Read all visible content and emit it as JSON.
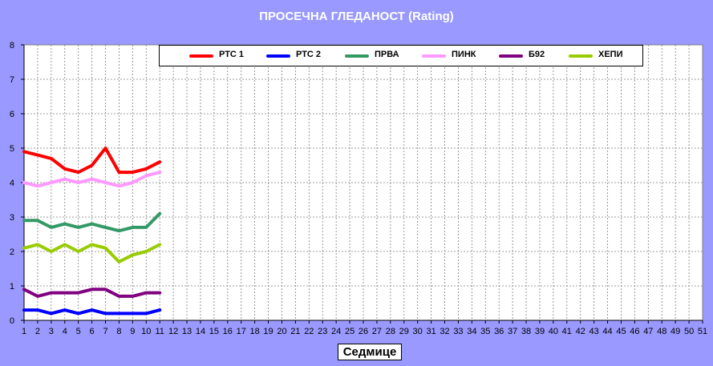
{
  "chart_data": {
    "type": "line",
    "title": "ПРОСЕЧНА ГЛЕДАНОСТ (Rating)",
    "xlabel": "Седмице",
    "ylabel": "",
    "ylim": [
      0,
      8
    ],
    "xlim": [
      1,
      51
    ],
    "yticks": [
      "0",
      "1",
      "2",
      "3",
      "4",
      "5",
      "6",
      "7",
      "8"
    ],
    "xticks": [
      "1",
      "2",
      "3",
      "4",
      "5",
      "6",
      "7",
      "8",
      "9",
      "10",
      "11",
      "12",
      "13",
      "14",
      "15",
      "16",
      "17",
      "18",
      "19",
      "20",
      "21",
      "22",
      "23",
      "24",
      "25",
      "26",
      "27",
      "28",
      "29",
      "30",
      "31",
      "32",
      "33",
      "34",
      "35",
      "36",
      "37",
      "38",
      "39",
      "40",
      "41",
      "42",
      "43",
      "44",
      "45",
      "46",
      "47",
      "48",
      "49",
      "50",
      "51"
    ],
    "grid": true,
    "legend_position": "top",
    "x": [
      1,
      2,
      3,
      4,
      5,
      6,
      7,
      8,
      9,
      10,
      11
    ],
    "series": [
      {
        "name": "РТС 1",
        "color": "#ff0000",
        "values": [
          4.9,
          4.8,
          4.7,
          4.4,
          4.3,
          4.5,
          5.0,
          4.3,
          4.3,
          4.4,
          4.6
        ]
      },
      {
        "name": "РТС 2",
        "color": "#0000ff",
        "values": [
          0.3,
          0.3,
          0.2,
          0.3,
          0.2,
          0.3,
          0.2,
          0.2,
          0.2,
          0.2,
          0.3
        ]
      },
      {
        "name": "ПРВА",
        "color": "#339966",
        "values": [
          2.9,
          2.9,
          2.7,
          2.8,
          2.7,
          2.8,
          2.7,
          2.6,
          2.7,
          2.7,
          3.1
        ]
      },
      {
        "name": "ПИНК",
        "color": "#ff99ff",
        "values": [
          4.0,
          3.9,
          4.0,
          4.1,
          4.0,
          4.1,
          4.0,
          3.9,
          4.0,
          4.2,
          4.3
        ]
      },
      {
        "name": "Б92",
        "color": "#800080",
        "values": [
          0.9,
          0.7,
          0.8,
          0.8,
          0.8,
          0.9,
          0.9,
          0.7,
          0.7,
          0.8,
          0.8
        ]
      },
      {
        "name": "ХЕПИ",
        "color": "#99cc00",
        "values": [
          2.1,
          2.2,
          2.0,
          2.2,
          2.0,
          2.2,
          2.1,
          1.7,
          1.9,
          2.0,
          2.2
        ]
      }
    ]
  }
}
